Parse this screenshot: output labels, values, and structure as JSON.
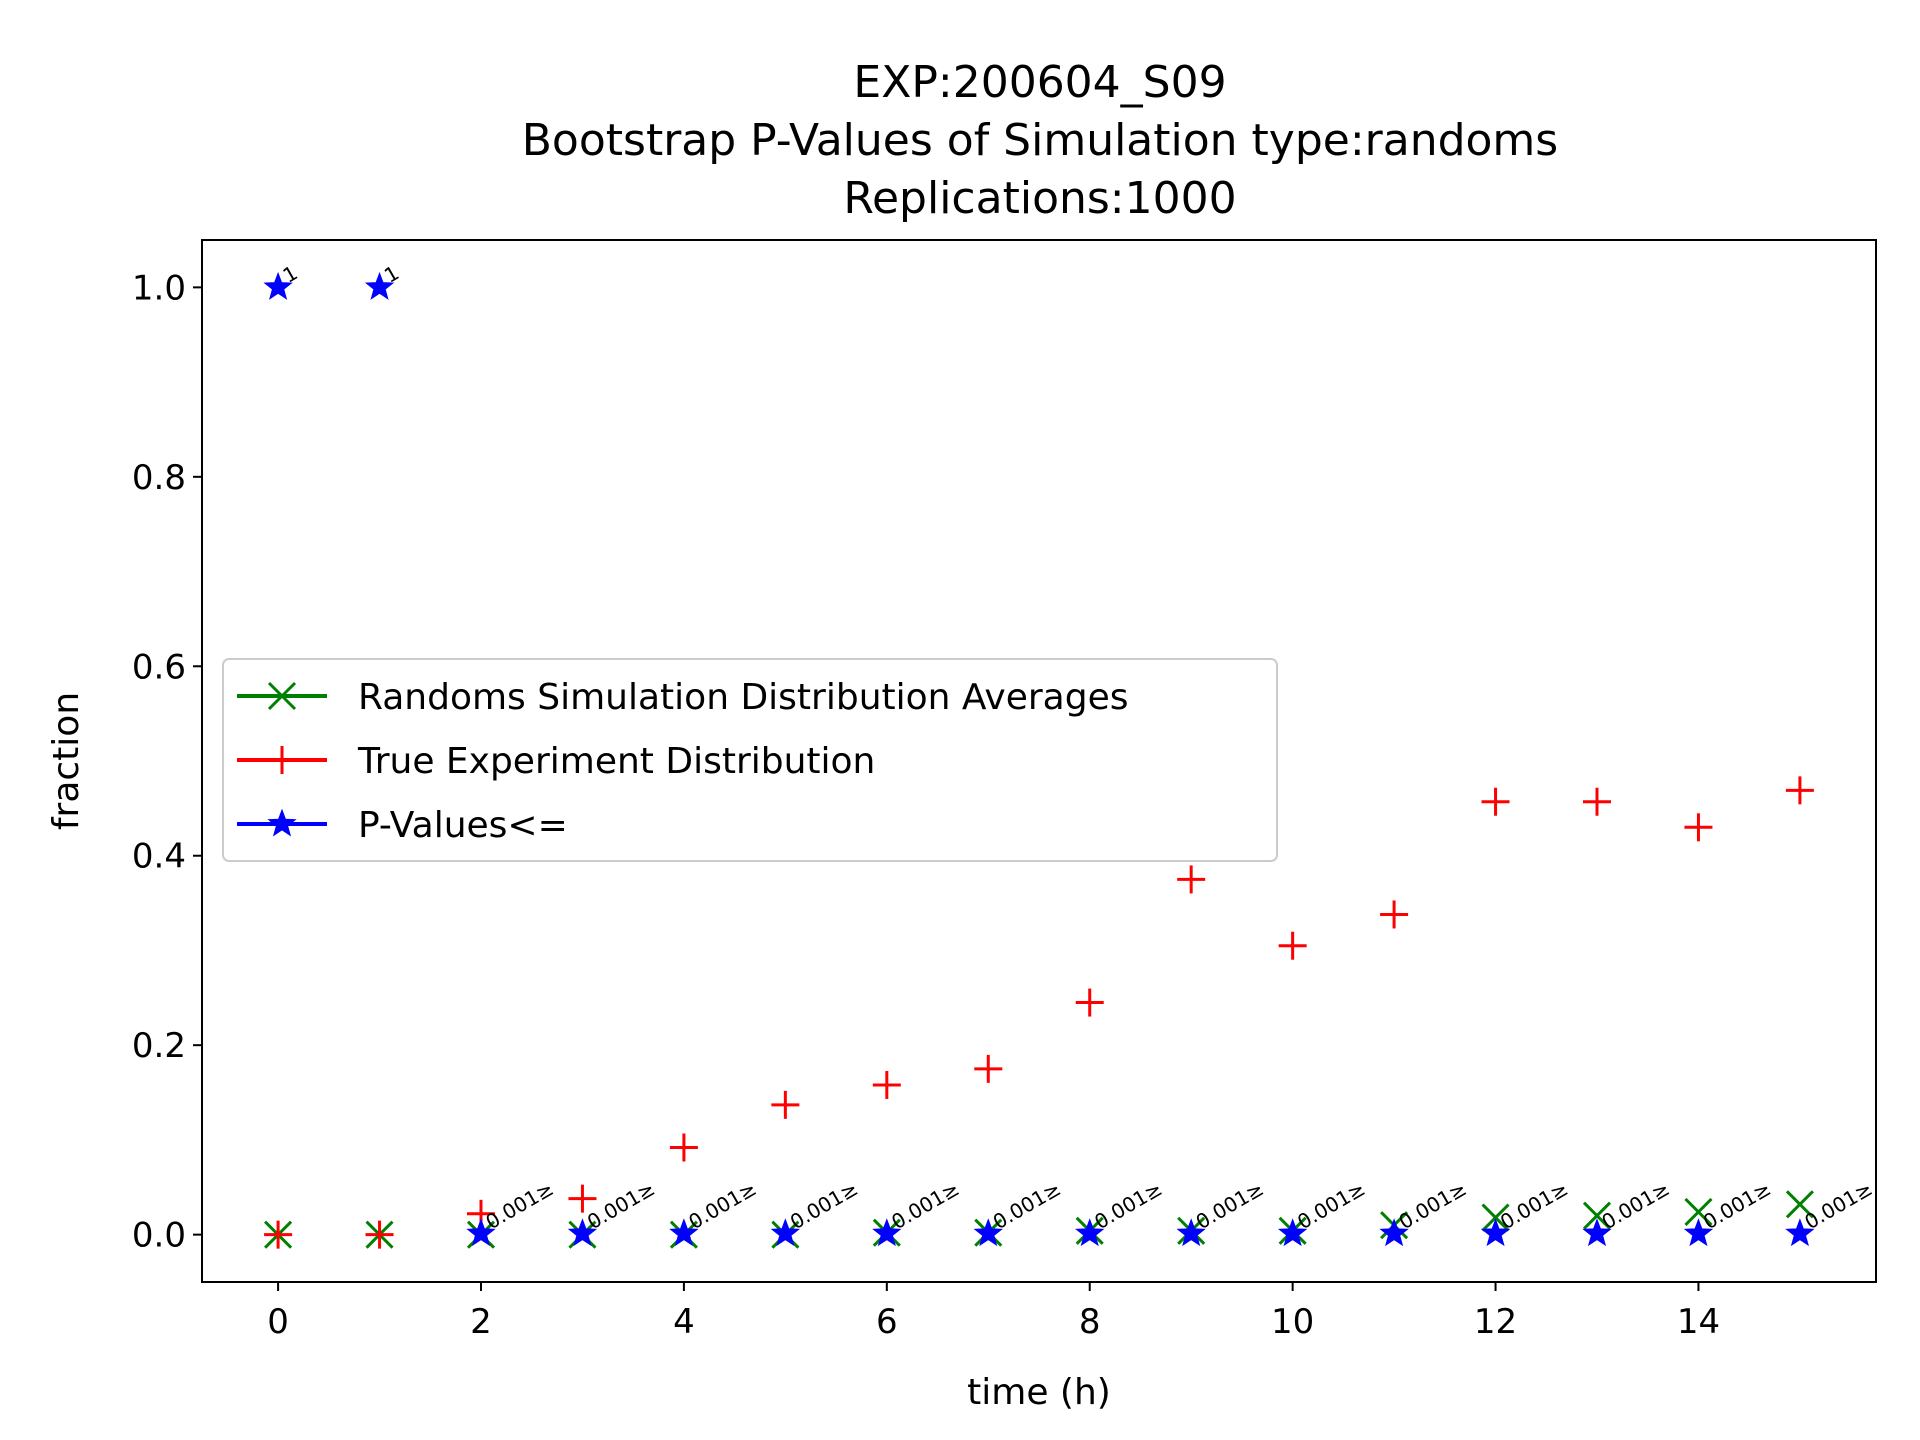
{
  "chart_data": {
    "type": "scatter",
    "title_lines": [
      "EXP:200604_S09",
      "Bootstrap P-Values of Simulation type:randoms",
      "Replications:1000"
    ],
    "xlabel": "time (h)",
    "ylabel": "fraction",
    "xlim": [
      -0.75,
      15.75
    ],
    "ylim": [
      -0.05,
      1.05
    ],
    "x_ticks": [
      0,
      2,
      4,
      6,
      8,
      10,
      12,
      14
    ],
    "y_ticks": [
      0.0,
      0.2,
      0.4,
      0.6,
      0.8,
      1.0
    ],
    "x_tick_labels": [
      "0",
      "2",
      "4",
      "6",
      "8",
      "10",
      "12",
      "14"
    ],
    "y_tick_labels": [
      "0.0",
      "0.2",
      "0.4",
      "0.6",
      "0.8",
      "1.0"
    ],
    "grid": false,
    "legend_position": "center-left",
    "x": [
      0,
      1,
      2,
      3,
      4,
      5,
      6,
      7,
      8,
      9,
      10,
      11,
      12,
      13,
      14,
      15
    ],
    "series": [
      {
        "name": "Randoms Simulation Distribution Averages",
        "marker": "x",
        "color": "#008000",
        "values": [
          0.0,
          0.0,
          0.0,
          0.0,
          0.0,
          0.0,
          0.002,
          0.002,
          0.004,
          0.004,
          0.004,
          0.01,
          0.018,
          0.02,
          0.024,
          0.032
        ]
      },
      {
        "name": "True Experiment Distribution",
        "marker": "+",
        "color": "#ff0000",
        "values": [
          0.0,
          0.0,
          0.022,
          0.038,
          0.092,
          0.137,
          0.158,
          0.175,
          0.245,
          0.375,
          0.305,
          0.338,
          0.457,
          0.457,
          0.43,
          0.469
        ]
      },
      {
        "name": "P-Values<=",
        "marker": "star",
        "color": "#0000ff",
        "values": [
          1.0,
          1.0,
          0.001,
          0.001,
          0.001,
          0.001,
          0.001,
          0.001,
          0.001,
          0.001,
          0.001,
          0.001,
          0.001,
          0.001,
          0.001,
          0.001
        ],
        "point_labels": [
          "1",
          "1",
          "0.001≥",
          "0.001≥",
          "0.001≥",
          "0.001≥",
          "0.001≥",
          "0.001≥",
          "0.001≥",
          "0.001≥",
          "0.001≥",
          "0.001≥",
          "0.001≥",
          "0.001≥",
          "0.001≥",
          "0.001≥"
        ]
      }
    ]
  }
}
